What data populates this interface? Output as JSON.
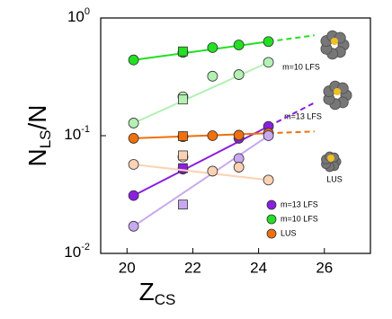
{
  "chart_data": {
    "type": "scatter",
    "xlabel_parts": [
      "Z",
      "CS"
    ],
    "ylabel_parts": [
      "N",
      "LS",
      "/N"
    ],
    "log_y": true,
    "xlim": [
      19.2,
      27.4
    ],
    "xticks": [
      20,
      22,
      24,
      26
    ],
    "ylim": [
      0.01,
      1
    ],
    "yticks": [
      {
        "value": 0.01,
        "label": "10",
        "exponent": "-2"
      },
      {
        "value": 0.1,
        "label": "10",
        "exponent": "-1"
      },
      {
        "value": 1,
        "label": "10",
        "exponent": "0"
      }
    ],
    "series": [
      {
        "name": "m=13 LFS",
        "color": "#8a1fe0",
        "x": [
          20.2,
          21.7,
          23.4,
          24.3
        ],
        "values": [
          0.031,
          0.052,
          0.095,
          0.12
        ],
        "square": {
          "x": 21.7,
          "value": 0.053
        }
      },
      {
        "name": "m=10 LFS",
        "color": "#22e022",
        "x": [
          20.2,
          21.7,
          22.6,
          23.4,
          24.3
        ],
        "values": [
          0.44,
          0.51,
          0.56,
          0.59,
          0.63
        ],
        "square": {
          "x": 21.7,
          "value": 0.52
        }
      },
      {
        "name": "LUS",
        "color": "#f0700c",
        "x": [
          20.2,
          21.7,
          22.6,
          23.4,
          24.3
        ],
        "values": [
          0.095,
          0.098,
          0.1,
          0.101,
          0.105
        ],
        "square": {
          "x": 21.7,
          "value": 0.099
        }
      },
      {
        "color": "#c8a8f0",
        "x": [
          20.2,
          23.4,
          24.3
        ],
        "values": [
          0.017,
          0.064,
          0.1
        ],
        "square": {
          "x": 21.7,
          "value": 0.026
        }
      },
      {
        "color": "#b4f0b4",
        "x": [
          20.2,
          21.7,
          22.6,
          23.4,
          24.3
        ],
        "values": [
          0.128,
          0.214,
          0.32,
          0.33,
          0.42
        ],
        "square": {
          "x": 21.7,
          "value": 0.203
        }
      },
      {
        "color": "#fcd2b4",
        "x": [
          20.2,
          21.7,
          22.6,
          23.4,
          24.3
        ],
        "values": [
          0.057,
          0.066,
          0.05,
          0.054,
          0.042
        ],
        "square": {
          "x": 21.7,
          "value": 0.068
        }
      }
    ],
    "annotations": [
      "m=10 LFS",
      "m=13 LFS",
      "LUS"
    ]
  }
}
